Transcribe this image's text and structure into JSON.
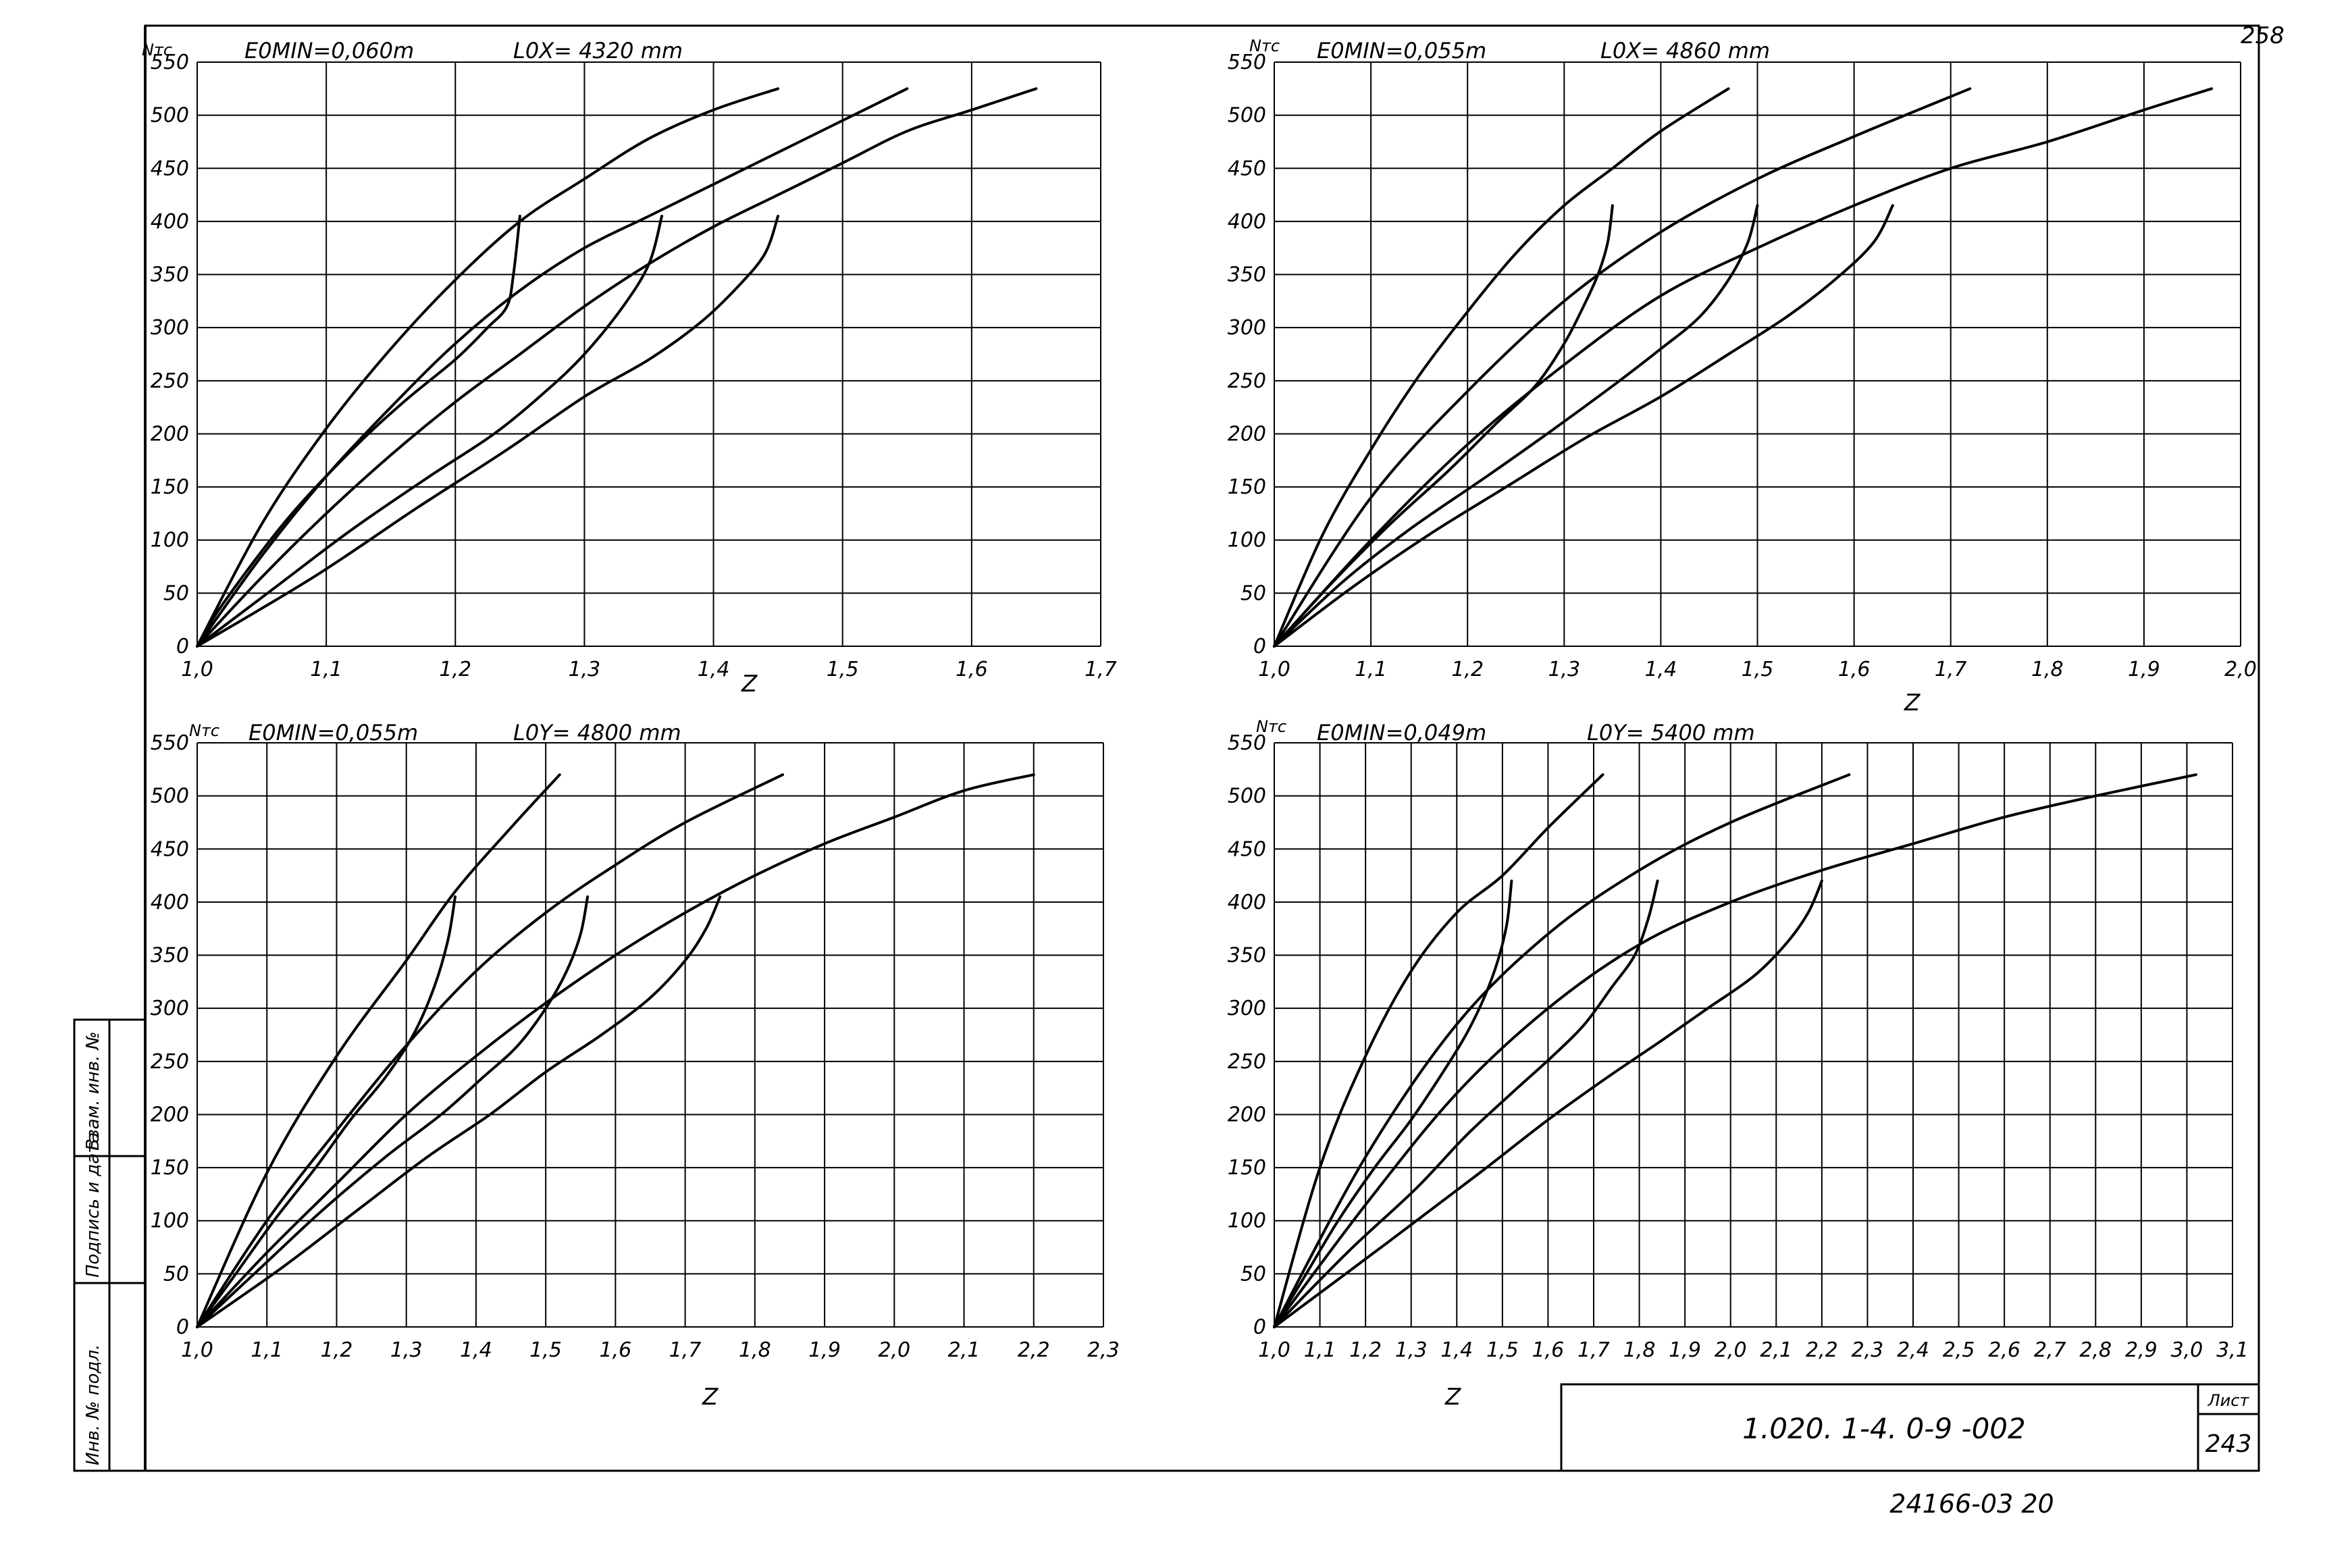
{
  "sheet_number_top": "258",
  "side_stamp": [
    "Инв. № подл.",
    "Подпись и дата",
    "Взам. инв. №"
  ],
  "title_block": {
    "designation": "1.020. 1-4. 0-9 -002",
    "sheet_label": "Лист",
    "sheet_value": "243",
    "bottom_code": "24166-03  20"
  },
  "chart_data": [
    {
      "type": "line",
      "ylabel": "Nтс",
      "xlabel": "Z",
      "header_left": "E0MIN=0,060m",
      "header_right": "L0X= 4320 mm",
      "x_ticks": [
        "1,0",
        "1,1",
        "1,2",
        "1,3",
        "1,4",
        "1,5",
        "1,6",
        "1,7"
      ],
      "y_ticks": [
        "0",
        "50",
        "100",
        "150",
        "200",
        "250",
        "300",
        "350",
        "400",
        "450",
        "500",
        "550"
      ],
      "xlim": [
        1.0,
        1.7
      ],
      "ylim": [
        0,
        550
      ],
      "series": [
        {
          "x": [
            1.0,
            1.05,
            1.1,
            1.15,
            1.2,
            1.25,
            1.3,
            1.35,
            1.4,
            1.45
          ],
          "y": [
            0,
            115,
            205,
            280,
            345,
            400,
            440,
            478,
            505,
            525
          ]
        },
        {
          "x": [
            1.0,
            1.05,
            1.1,
            1.15,
            1.2,
            1.25,
            1.3,
            1.35,
            1.4,
            1.45,
            1.5,
            1.55
          ],
          "y": [
            0,
            85,
            160,
            225,
            285,
            335,
            375,
            405,
            435,
            465,
            495,
            525
          ]
        },
        {
          "x": [
            1.0,
            1.05,
            1.1,
            1.15,
            1.2,
            1.25,
            1.3,
            1.35,
            1.4,
            1.45,
            1.5,
            1.55,
            1.6,
            1.65
          ],
          "y": [
            0,
            65,
            125,
            180,
            230,
            275,
            320,
            360,
            395,
            425,
            455,
            485,
            505,
            525
          ]
        },
        {
          "x": [
            1.25,
            1.245,
            1.24,
            1.225,
            1.2,
            1.16,
            1.12,
            1.07,
            1.02,
            1.0
          ],
          "y": [
            405,
            350,
            320,
            300,
            270,
            230,
            185,
            120,
            40,
            0
          ]
        },
        {
          "x": [
            1.36,
            1.35,
            1.33,
            1.3,
            1.27,
            1.23,
            1.18,
            1.12,
            1.06,
            1.0
          ],
          "y": [
            405,
            360,
            320,
            275,
            240,
            200,
            160,
            110,
            55,
            0
          ]
        },
        {
          "x": [
            1.45,
            1.44,
            1.42,
            1.39,
            1.35,
            1.3,
            1.24,
            1.17,
            1.09,
            1.0
          ],
          "y": [
            405,
            370,
            340,
            305,
            270,
            235,
            185,
            130,
            65,
            0
          ]
        }
      ]
    },
    {
      "type": "line",
      "ylabel": "Nтс",
      "xlabel": "Z",
      "header_left": "E0MIN=0,055m",
      "header_right": "L0X= 4860 mm",
      "x_ticks": [
        "1,0",
        "1,1",
        "1,2",
        "1,3",
        "1,4",
        "1,5",
        "1,6",
        "1,7",
        "1,8",
        "1,9",
        "2,0"
      ],
      "y_ticks": [
        "0",
        "50",
        "100",
        "150",
        "200",
        "250",
        "300",
        "350",
        "400",
        "450",
        "500",
        "550"
      ],
      "xlim": [
        1.0,
        2.0
      ],
      "ylim": [
        0,
        550
      ],
      "series": [
        {
          "x": [
            1.0,
            1.05,
            1.1,
            1.15,
            1.2,
            1.25,
            1.3,
            1.35,
            1.4,
            1.47
          ],
          "y": [
            0,
            105,
            185,
            255,
            315,
            370,
            415,
            450,
            485,
            525
          ]
        },
        {
          "x": [
            1.0,
            1.1,
            1.2,
            1.3,
            1.4,
            1.5,
            1.6,
            1.72
          ],
          "y": [
            0,
            140,
            240,
            325,
            390,
            440,
            480,
            525
          ]
        },
        {
          "x": [
            1.0,
            1.1,
            1.2,
            1.3,
            1.4,
            1.5,
            1.6,
            1.7,
            1.8,
            1.9,
            1.97
          ],
          "y": [
            0,
            100,
            190,
            265,
            330,
            375,
            415,
            450,
            475,
            505,
            525
          ]
        },
        {
          "x": [
            1.35,
            1.345,
            1.335,
            1.32,
            1.3,
            1.27,
            1.23,
            1.18,
            1.12,
            1.06,
            1.0
          ],
          "y": [
            415,
            380,
            350,
            320,
            285,
            245,
            210,
            165,
            115,
            60,
            0
          ]
        },
        {
          "x": [
            1.5,
            1.49,
            1.47,
            1.44,
            1.4,
            1.35,
            1.29,
            1.22,
            1.14,
            1.07,
            1.0
          ],
          "y": [
            415,
            380,
            345,
            310,
            280,
            245,
            205,
            160,
            110,
            60,
            0
          ]
        },
        {
          "x": [
            1.64,
            1.62,
            1.58,
            1.53,
            1.47,
            1.4,
            1.32,
            1.24,
            1.16,
            1.08,
            1.0
          ],
          "y": [
            415,
            380,
            345,
            310,
            275,
            235,
            195,
            150,
            105,
            55,
            0
          ]
        }
      ]
    },
    {
      "type": "line",
      "ylabel": "Nтс",
      "xlabel": "Z",
      "header_left": "E0MIN=0,055m",
      "header_right": "L0Y= 4800 mm",
      "x_ticks": [
        "1,0",
        "1,1",
        "1,2",
        "1,3",
        "1,4",
        "1,5",
        "1,6",
        "1,7",
        "1,8",
        "1,9",
        "2,0",
        "2,1",
        "2,2",
        "2,3"
      ],
      "y_ticks": [
        "0",
        "50",
        "100",
        "150",
        "200",
        "250",
        "300",
        "350",
        "400",
        "450",
        "500",
        "550"
      ],
      "xlim": [
        1.0,
        2.3
      ],
      "ylim": [
        0,
        550
      ],
      "series": [
        {
          "x": [
            1.0,
            1.1,
            1.2,
            1.3,
            1.37,
            1.45,
            1.52
          ],
          "y": [
            0,
            145,
            255,
            345,
            410,
            470,
            520
          ]
        },
        {
          "x": [
            1.0,
            1.1,
            1.2,
            1.3,
            1.4,
            1.5,
            1.6,
            1.7,
            1.84
          ],
          "y": [
            0,
            100,
            185,
            265,
            335,
            390,
            435,
            475,
            520
          ]
        },
        {
          "x": [
            1.0,
            1.1,
            1.2,
            1.3,
            1.4,
            1.5,
            1.6,
            1.7,
            1.8,
            1.9,
            2.0,
            2.1,
            2.2
          ],
          "y": [
            0,
            70,
            135,
            200,
            255,
            305,
            350,
            390,
            425,
            455,
            480,
            505,
            520
          ]
        },
        {
          "x": [
            1.37,
            1.36,
            1.34,
            1.31,
            1.27,
            1.22,
            1.17,
            1.11,
            1.05,
            1.0
          ],
          "y": [
            405,
            365,
            320,
            275,
            235,
            195,
            150,
            100,
            45,
            0
          ]
        },
        {
          "x": [
            1.56,
            1.55,
            1.53,
            1.5,
            1.46,
            1.41,
            1.35,
            1.27,
            1.18,
            1.09,
            1.0
          ],
          "y": [
            405,
            370,
            335,
            300,
            265,
            235,
            200,
            160,
            110,
            55,
            0
          ]
        },
        {
          "x": [
            1.75,
            1.73,
            1.7,
            1.65,
            1.58,
            1.5,
            1.42,
            1.33,
            1.23,
            1.12,
            1.0
          ],
          "y": [
            405,
            375,
            345,
            310,
            275,
            240,
            200,
            160,
            110,
            55,
            0
          ]
        }
      ]
    },
    {
      "type": "line",
      "ylabel": "Nтс",
      "xlabel": "Z",
      "header_left": "E0MIN=0,049m",
      "header_right": "L0Y= 5400 mm",
      "x_ticks": [
        "1,0",
        "1,1",
        "1,2",
        "1,3",
        "1,4",
        "1,5",
        "1,6",
        "1,7",
        "1,8",
        "1,9",
        "2,0",
        "2,1",
        "2,2",
        "2,3",
        "2,4",
        "2,5",
        "2,6",
        "2,7",
        "2,8",
        "2,9",
        "3,0",
        "3,1"
      ],
      "y_ticks": [
        "0",
        "50",
        "100",
        "150",
        "200",
        "250",
        "300",
        "350",
        "400",
        "450",
        "500",
        "550"
      ],
      "xlim": [
        1.0,
        3.1
      ],
      "ylim": [
        0,
        550
      ],
      "series": [
        {
          "x": [
            1.0,
            1.1,
            1.2,
            1.3,
            1.4,
            1.5,
            1.6,
            1.72
          ],
          "y": [
            0,
            150,
            255,
            335,
            390,
            425,
            470,
            520
          ]
        },
        {
          "x": [
            1.0,
            1.2,
            1.4,
            1.6,
            1.8,
            2.0,
            2.26
          ],
          "y": [
            0,
            160,
            285,
            370,
            430,
            475,
            520
          ]
        },
        {
          "x": [
            1.0,
            1.2,
            1.4,
            1.6,
            1.8,
            2.0,
            2.2,
            2.4,
            2.6,
            2.8,
            3.02
          ],
          "y": [
            0,
            115,
            220,
            300,
            360,
            400,
            430,
            455,
            480,
            500,
            520
          ]
        },
        {
          "x": [
            1.52,
            1.51,
            1.49,
            1.46,
            1.42,
            1.37,
            1.3,
            1.22,
            1.14,
            1.07,
            1.0
          ],
          "y": [
            420,
            380,
            345,
            310,
            275,
            240,
            195,
            150,
            100,
            50,
            0
          ]
        },
        {
          "x": [
            1.84,
            1.82,
            1.79,
            1.74,
            1.68,
            1.61,
            1.52,
            1.42,
            1.31,
            1.16,
            1.0
          ],
          "y": [
            420,
            385,
            350,
            320,
            285,
            255,
            220,
            180,
            130,
            70,
            0
          ]
        },
        {
          "x": [
            2.2,
            2.17,
            2.12,
            2.05,
            1.95,
            1.85,
            1.73,
            1.6,
            1.45,
            1.25,
            1.0
          ],
          "y": [
            420,
            390,
            360,
            330,
            300,
            270,
            235,
            195,
            145,
            80,
            0
          ]
        }
      ]
    }
  ]
}
